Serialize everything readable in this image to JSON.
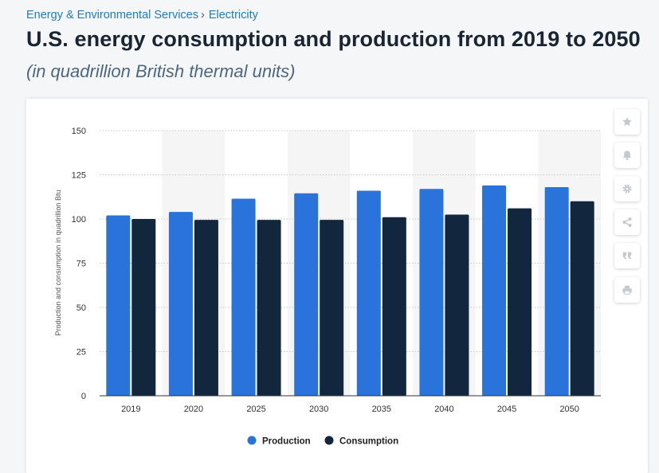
{
  "breadcrumb": {
    "items": [
      "Energy & Environmental Services",
      "Electricity"
    ],
    "separator": "›"
  },
  "title": "U.S. energy consumption and production from 2019 to 2050",
  "subtitle": "(in quadrillion British thermal units)",
  "toolbar": {
    "icons": [
      "star-icon",
      "bell-icon",
      "gear-icon",
      "share-icon",
      "quote-icon",
      "print-icon"
    ]
  },
  "chart_data": {
    "type": "bar",
    "categories": [
      "2019",
      "2020",
      "2025",
      "2030",
      "2035",
      "2040",
      "2045",
      "2050"
    ],
    "series": [
      {
        "name": "Production",
        "color": "#2a73db",
        "values": [
          102,
          104,
          111.5,
          114.5,
          116,
          117,
          119,
          118
        ]
      },
      {
        "name": "Consumption",
        "color": "#12263d",
        "values": [
          100,
          99.5,
          99.5,
          99.5,
          101,
          102.5,
          106,
          110
        ]
      }
    ],
    "ylabel": "Production and consumption in quadrillion Btu",
    "ylim": [
      0,
      150
    ],
    "yticks": [
      0,
      25,
      50,
      75,
      100,
      125,
      150
    ],
    "grid": true,
    "legend": "bottom-center"
  }
}
